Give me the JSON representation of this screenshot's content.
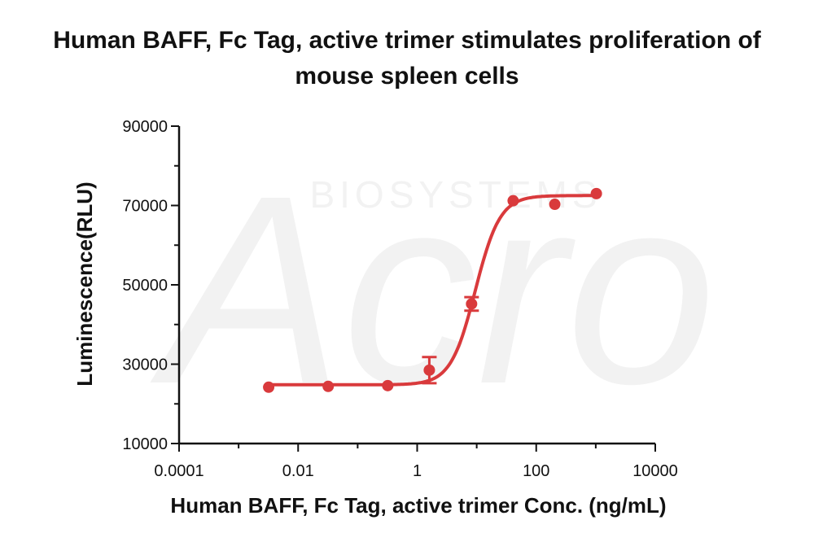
{
  "chart_data": {
    "type": "scatter",
    "title_lines": [
      "Human BAFF, Fc Tag, active trimer stimulates proliferation of",
      "mouse spleen cells"
    ],
    "xlabel": "Human BAFF, Fc Tag, active trimer Conc. (ng/mL)",
    "ylabel": "Luminescence(RLU)",
    "x_scale": "log",
    "xlim": [
      0.0001,
      10000
    ],
    "ylim": [
      10000,
      90000
    ],
    "x_ticks": [
      0.0001,
      0.01,
      1,
      100,
      10000
    ],
    "x_tick_labels": [
      "0.0001",
      "0.01",
      "1",
      "100",
      "10000"
    ],
    "y_ticks": [
      10000,
      30000,
      50000,
      70000,
      90000
    ],
    "y_tick_labels": [
      "10000",
      "30000",
      "50000",
      "70000",
      "90000"
    ],
    "series": [
      {
        "x": [
          0.0032,
          0.032,
          0.32,
          1.6,
          8.2,
          41,
          205,
          1024
        ],
        "y": [
          24200,
          24400,
          24600,
          28500,
          45200,
          71200,
          70300,
          73000
        ],
        "error": [
          0,
          0,
          0,
          3300,
          1700,
          0,
          0,
          0
        ],
        "fit": {
          "model": "4PL",
          "bottom": 24800,
          "top": 72500,
          "ec50": 9.5,
          "hill": 2.1
        }
      }
    ],
    "colors": {
      "series": "#d93a3c",
      "axis": "#111111",
      "watermark": "#f2f2f2"
    },
    "watermark": {
      "brand": "Acro",
      "subtitle": "BIOSYSTEMS"
    },
    "grid": false,
    "legend": "none"
  }
}
